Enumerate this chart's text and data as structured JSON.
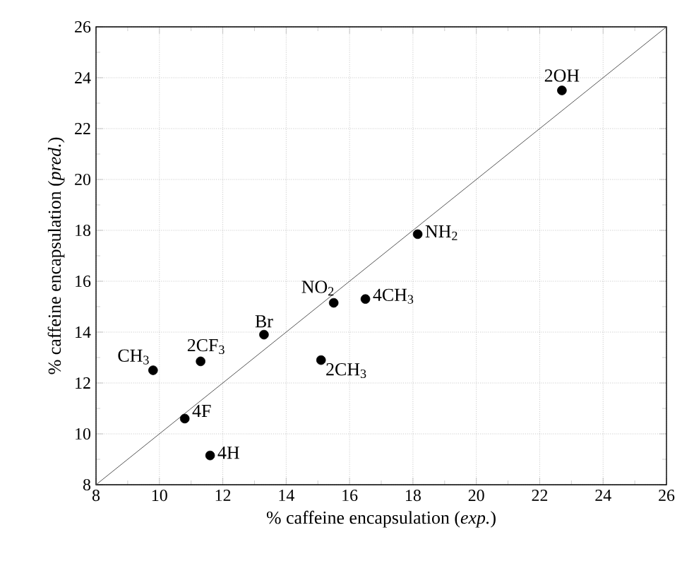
{
  "chart_data": {
    "type": "scatter",
    "xlabel": "% caffeine encapsulation (*exp.*)",
    "ylabel": "% caffeine encapsulation (*pred.*)",
    "xlim": [
      8,
      26
    ],
    "ylim": [
      8,
      26
    ],
    "xticks": [
      8,
      10,
      12,
      14,
      16,
      18,
      20,
      22,
      24,
      26
    ],
    "yticks": [
      8,
      10,
      12,
      14,
      16,
      18,
      20,
      22,
      24,
      26
    ],
    "grid": true,
    "series": [
      {
        "color": "#000000",
        "marker": "circle",
        "x": [
          9.8,
          11.3,
          13.3,
          15.5,
          16.5,
          18.15,
          22.7,
          15.1,
          10.8,
          11.6
        ],
        "values": [
          12.5,
          12.85,
          13.9,
          15.15,
          15.3,
          17.85,
          23.5,
          12.9,
          10.6,
          9.15
        ]
      },
      {
        "type": "line",
        "color": "#555555",
        "marker": "none",
        "x": [
          8,
          26
        ],
        "values": [
          8,
          26
        ]
      }
    ],
    "annotations": [
      {
        "text": "CH$_{3}$",
        "x": 9.8,
        "y": 12.5
      },
      {
        "text": "2CF$_{3}$",
        "x": 11.3,
        "y": 12.85
      },
      {
        "text": "Br",
        "x": 13.3,
        "y": 13.9
      },
      {
        "text": "NO$_{2}$",
        "x": 15.5,
        "y": 15.15
      },
      {
        "text": "4CH$_{3}$",
        "x": 16.5,
        "y": 15.3
      },
      {
        "text": "NH$_{2}$",
        "x": 18.15,
        "y": 17.85
      },
      {
        "text": "2OH",
        "x": 22.7,
        "y": 23.5
      },
      {
        "text": "2CH$_{3}$",
        "x": 15.1,
        "y": 12.9
      },
      {
        "text": "4F",
        "x": 10.8,
        "y": 10.6
      },
      {
        "text": "4H",
        "x": 11.6,
        "y": 9.15
      }
    ]
  }
}
